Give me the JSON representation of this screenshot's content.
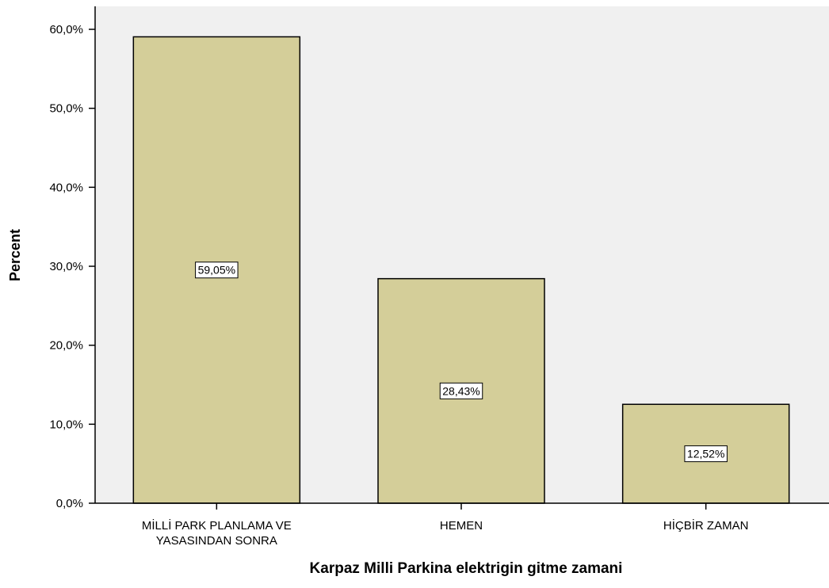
{
  "chart_data": {
    "type": "bar",
    "title": "",
    "xlabel": "Karpaz Milli Parkina elektrigin gitme zamani",
    "ylabel": "Percent",
    "categories": [
      [
        "MİLLİ PARK PLANLAMA VE",
        "YASASINDAN SONRA"
      ],
      [
        "HEMEN"
      ],
      [
        "HİÇBİR ZAMAN"
      ]
    ],
    "values": [
      59.05,
      28.43,
      12.52
    ],
    "data_labels": [
      "59,05%",
      "28,43%",
      "12,52%"
    ],
    "ylim": [
      0,
      60
    ],
    "yticks": [
      0,
      10,
      20,
      30,
      40,
      50,
      60
    ],
    "ytick_labels": [
      "0,0%",
      "10,0%",
      "20,0%",
      "30,0%",
      "40,0%",
      "50,0%",
      "60,0%"
    ],
    "grid": false,
    "legend": "none",
    "colors": {
      "bar_fill": "#d4ce99",
      "bar_stroke": "#000000",
      "plot_background": "#f0f0f0",
      "axis": "#000000",
      "label_box_fill": "#ffffff"
    }
  }
}
